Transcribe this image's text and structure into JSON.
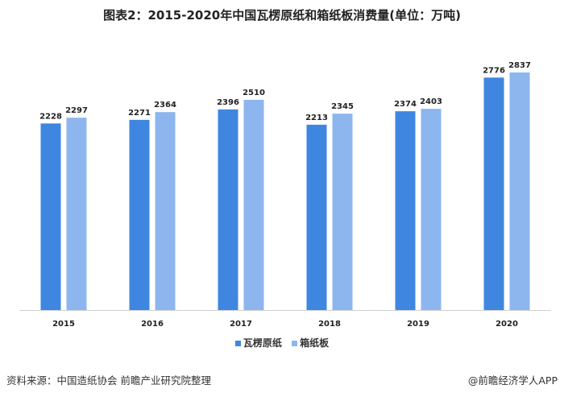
{
  "chart_data": {
    "type": "bar",
    "title": "图表2：2015-2020年中国瓦楞原纸和箱纸板消费量(单位：万吨)",
    "categories": [
      "2015",
      "2016",
      "2017",
      "2018",
      "2019",
      "2020"
    ],
    "series": [
      {
        "name": "瓦楞原纸",
        "color": "#3f86e0",
        "values": [
          2228,
          2271,
          2396,
          2213,
          2374,
          2776
        ]
      },
      {
        "name": "箱纸板",
        "color": "#8db6ee",
        "values": [
          2297,
          2364,
          2510,
          2345,
          2403,
          2837
        ]
      }
    ],
    "ylim": [
      0,
      2900
    ],
    "grid": false,
    "legend_position": "bottom",
    "data_labels": true
  },
  "footer": {
    "source": "资料来源：中国造纸协会 前瞻产业研究院整理",
    "brand": "@前瞻经济学人APP"
  }
}
